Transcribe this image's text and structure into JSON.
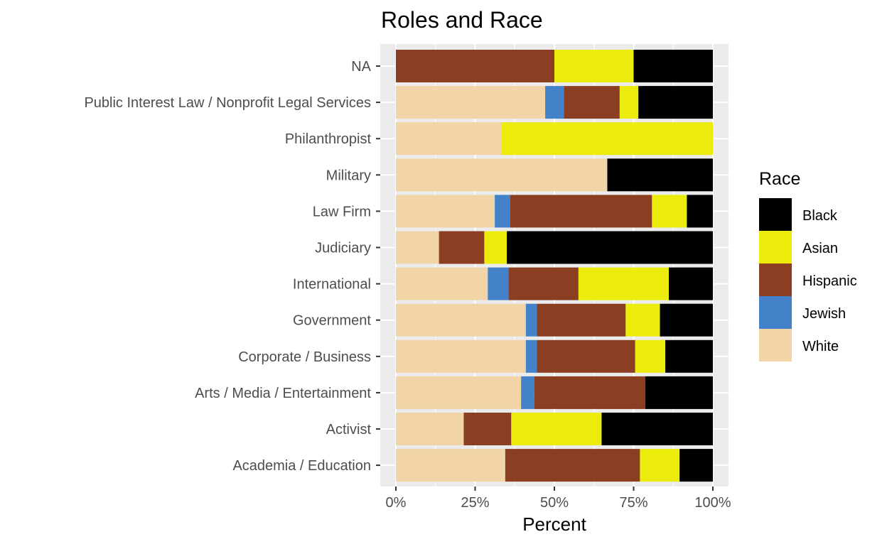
{
  "colors": {
    "Black": "#000000",
    "Asian": "#ECEC0C",
    "Hispanic": "#8B3E22",
    "Jewish": "#4381C8",
    "White": "#F1D5A6",
    "panel": "#EBEBEB",
    "grid": "#FFFFFF"
  },
  "chart_data": {
    "type": "bar",
    "orientation": "horizontal",
    "stacked": "percent",
    "title": "Roles and Race",
    "xlabel": "Percent",
    "ylabel": "",
    "xlim": [
      0,
      100
    ],
    "x_ticks": [
      "0%",
      "25%",
      "50%",
      "75%",
      "100%"
    ],
    "grid": true,
    "legend_title": "Race",
    "legend_position": "right",
    "legend_order": [
      "Black",
      "Asian",
      "Hispanic",
      "Jewish",
      "White"
    ],
    "categories": [
      "NA",
      "Public Interest Law / Nonprofit Legal Services",
      "Philanthropist",
      "Military",
      "Law Firm",
      "Judiciary",
      "International",
      "Government",
      "Corporate / Business",
      "Arts / Media / Entertainment",
      "Activist",
      "Academia / Education"
    ],
    "series": [
      {
        "name": "White",
        "values": [
          0,
          47.1,
          33.3,
          66.7,
          31.2,
          13.6,
          29.0,
          41.0,
          41.0,
          39.5,
          21.4,
          34.5
        ]
      },
      {
        "name": "Jewish",
        "values": [
          0,
          5.9,
          0,
          0,
          4.9,
          0,
          6.5,
          3.5,
          3.5,
          4.2,
          0,
          0
        ]
      },
      {
        "name": "Hispanic",
        "values": [
          50.0,
          17.6,
          0,
          0,
          44.7,
          14.3,
          22.1,
          28.0,
          31.0,
          35.0,
          15.0,
          42.5
        ]
      },
      {
        "name": "Asian",
        "values": [
          25.0,
          5.9,
          66.7,
          0,
          11.0,
          7.1,
          28.5,
          10.8,
          9.5,
          0,
          28.5,
          12.5
        ]
      },
      {
        "name": "Black",
        "values": [
          25.0,
          23.5,
          0,
          33.3,
          8.2,
          65.0,
          13.9,
          16.7,
          15.0,
          21.3,
          35.1,
          10.5
        ]
      }
    ]
  }
}
